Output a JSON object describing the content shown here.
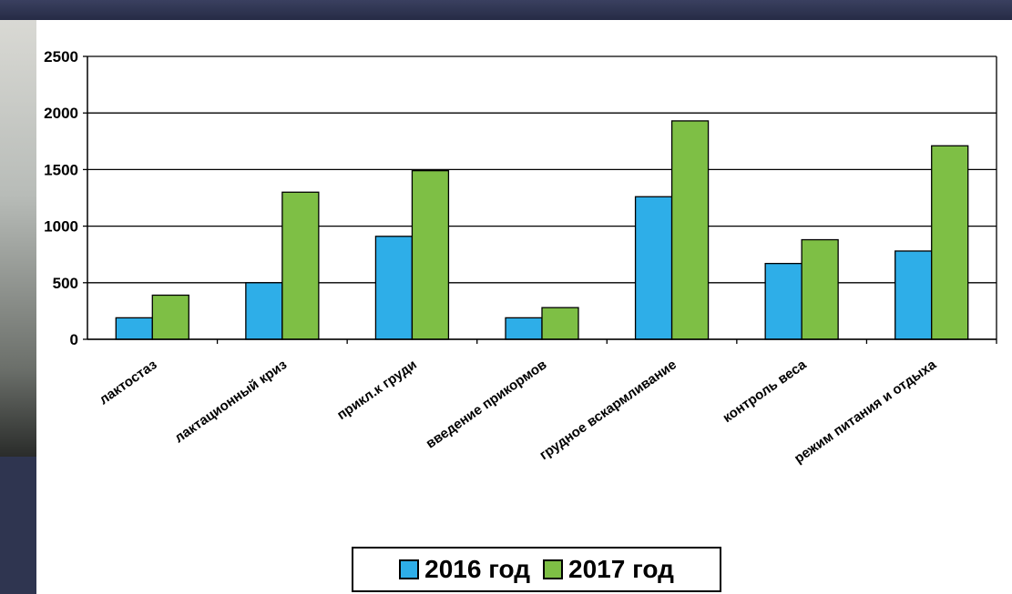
{
  "colors": {
    "series_2016": "#2eaee8",
    "series_2017": "#7ebf45"
  },
  "chart_data": {
    "type": "bar",
    "categories": [
      "лактостаз",
      "лактационный криз",
      "прикл.к груди",
      "введение прикормов",
      "грудное вскармливание",
      "контроль веса",
      "режим питания и отдыха"
    ],
    "series": [
      {
        "name": "2016 год",
        "values": [
          190,
          500,
          910,
          190,
          1260,
          670,
          780
        ]
      },
      {
        "name": "2017 год",
        "values": [
          390,
          1300,
          1490,
          280,
          1930,
          880,
          1710
        ]
      }
    ],
    "yticks": [
      "0",
      "500",
      "1000",
      "1500",
      "2000",
      "2500"
    ],
    "ylim": [
      0,
      2500
    ],
    "grid": true,
    "legend_position": "bottom"
  }
}
